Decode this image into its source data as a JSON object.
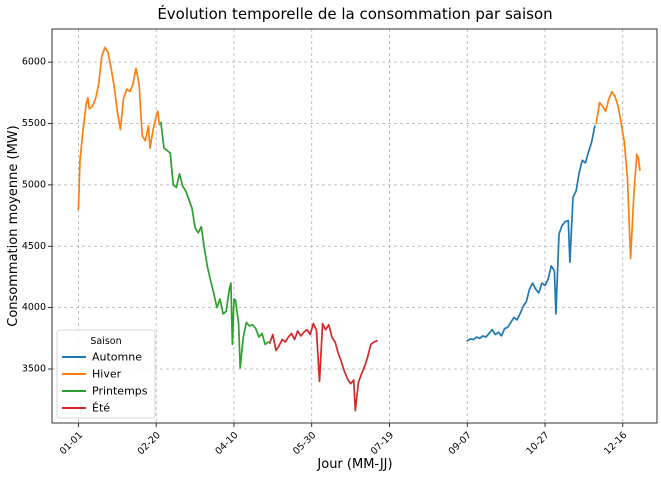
{
  "chart_data": {
    "type": "line",
    "title": "Évolution temporelle de la consommation par saison",
    "xlabel": "Jour (MM-JJ)",
    "ylabel": "Consommation moyenne (MW)",
    "x_tick_labels": [
      "01-01",
      "02-20",
      "04-10",
      "05-30",
      "07-19",
      "09-07",
      "10-27",
      "12-16"
    ],
    "x_tick_days": [
      1,
      51,
      101,
      151,
      201,
      251,
      301,
      351
    ],
    "x_range_days": [
      -16,
      373
    ],
    "y_ticks": [
      3500,
      4000,
      4500,
      5000,
      5500,
      6000
    ],
    "ylim": [
      3060,
      6270
    ],
    "grid": true,
    "legend": {
      "title": "Saison",
      "placement": "lower-left"
    },
    "series": [
      {
        "name": "Automne",
        "color": "#1f77b4",
        "points": [
          [
            251,
            3730
          ],
          [
            253,
            3745
          ],
          [
            255,
            3740
          ],
          [
            257,
            3760
          ],
          [
            259,
            3750
          ],
          [
            261,
            3770
          ],
          [
            263,
            3760
          ],
          [
            265,
            3790
          ],
          [
            267,
            3820
          ],
          [
            269,
            3780
          ],
          [
            271,
            3800
          ],
          [
            273,
            3770
          ],
          [
            275,
            3830
          ],
          [
            277,
            3840
          ],
          [
            279,
            3880
          ],
          [
            281,
            3920
          ],
          [
            283,
            3900
          ],
          [
            285,
            3950
          ],
          [
            287,
            4010
          ],
          [
            289,
            4050
          ],
          [
            291,
            4150
          ],
          [
            293,
            4200
          ],
          [
            295,
            4150
          ],
          [
            297,
            4120
          ],
          [
            299,
            4200
          ],
          [
            301,
            4180
          ],
          [
            303,
            4230
          ],
          [
            305,
            4340
          ],
          [
            307,
            4300
          ],
          [
            308,
            3950
          ],
          [
            310,
            4600
          ],
          [
            312,
            4670
          ],
          [
            314,
            4700
          ],
          [
            316,
            4710
          ],
          [
            317,
            4370
          ],
          [
            319,
            4900
          ],
          [
            321,
            4950
          ],
          [
            323,
            5100
          ],
          [
            325,
            5200
          ],
          [
            327,
            5180
          ],
          [
            329,
            5270
          ],
          [
            331,
            5350
          ],
          [
            333,
            5480
          ]
        ]
      },
      {
        "name": "Hiver",
        "color": "#ff7f0e",
        "points": [
          [
            1,
            4800
          ],
          [
            2,
            5200
          ],
          [
            4,
            5450
          ],
          [
            6,
            5660
          ],
          [
            7,
            5710
          ],
          [
            8,
            5620
          ],
          [
            10,
            5640
          ],
          [
            12,
            5700
          ],
          [
            14,
            5820
          ],
          [
            16,
            6050
          ],
          [
            18,
            6120
          ],
          [
            20,
            6080
          ],
          [
            22,
            5950
          ],
          [
            24,
            5800
          ],
          [
            26,
            5600
          ],
          [
            28,
            5450
          ],
          [
            30,
            5700
          ],
          [
            32,
            5780
          ],
          [
            34,
            5760
          ],
          [
            36,
            5820
          ],
          [
            38,
            5950
          ],
          [
            40,
            5820
          ],
          [
            42,
            5400
          ],
          [
            44,
            5360
          ],
          [
            46,
            5480
          ],
          [
            47,
            5300
          ],
          [
            49,
            5450
          ],
          [
            51,
            5560
          ],
          [
            52,
            5600
          ],
          [
            53,
            5490
          ],
          [
            334,
            5500
          ],
          [
            336,
            5670
          ],
          [
            338,
            5640
          ],
          [
            340,
            5600
          ],
          [
            342,
            5700
          ],
          [
            344,
            5760
          ],
          [
            346,
            5720
          ],
          [
            348,
            5640
          ],
          [
            350,
            5500
          ],
          [
            352,
            5350
          ],
          [
            354,
            5060
          ],
          [
            356,
            4400
          ],
          [
            358,
            4900
          ],
          [
            360,
            5250
          ],
          [
            361,
            5220
          ],
          [
            362,
            5120
          ]
        ]
      },
      {
        "name": "Printemps",
        "color": "#2ca02c",
        "points": [
          [
            54,
            5510
          ],
          [
            56,
            5300
          ],
          [
            58,
            5280
          ],
          [
            60,
            5260
          ],
          [
            62,
            5000
          ],
          [
            64,
            4980
          ],
          [
            66,
            5090
          ],
          [
            68,
            4990
          ],
          [
            70,
            4950
          ],
          [
            72,
            4880
          ],
          [
            74,
            4810
          ],
          [
            76,
            4650
          ],
          [
            78,
            4610
          ],
          [
            80,
            4660
          ],
          [
            82,
            4480
          ],
          [
            84,
            4330
          ],
          [
            86,
            4220
          ],
          [
            88,
            4120
          ],
          [
            90,
            4000
          ],
          [
            92,
            4070
          ],
          [
            94,
            3950
          ],
          [
            96,
            3970
          ],
          [
            98,
            4150
          ],
          [
            99,
            4200
          ],
          [
            100,
            3700
          ],
          [
            101,
            4070
          ],
          [
            102,
            4060
          ],
          [
            104,
            3870
          ],
          [
            105,
            3510
          ],
          [
            107,
            3760
          ],
          [
            109,
            3880
          ],
          [
            111,
            3850
          ],
          [
            113,
            3860
          ],
          [
            115,
            3830
          ],
          [
            117,
            3760
          ],
          [
            119,
            3790
          ],
          [
            121,
            3700
          ],
          [
            123,
            3720
          ]
        ]
      },
      {
        "name": "Été",
        "color": "#d62728",
        "points": [
          [
            124,
            3710
          ],
          [
            126,
            3780
          ],
          [
            128,
            3650
          ],
          [
            130,
            3690
          ],
          [
            132,
            3740
          ],
          [
            134,
            3720
          ],
          [
            136,
            3760
          ],
          [
            138,
            3790
          ],
          [
            140,
            3740
          ],
          [
            142,
            3810
          ],
          [
            144,
            3770
          ],
          [
            146,
            3800
          ],
          [
            148,
            3820
          ],
          [
            150,
            3780
          ],
          [
            152,
            3870
          ],
          [
            154,
            3820
          ],
          [
            156,
            3400
          ],
          [
            158,
            3870
          ],
          [
            160,
            3820
          ],
          [
            162,
            3860
          ],
          [
            164,
            3760
          ],
          [
            166,
            3720
          ],
          [
            168,
            3630
          ],
          [
            170,
            3560
          ],
          [
            172,
            3480
          ],
          [
            174,
            3420
          ],
          [
            176,
            3380
          ],
          [
            178,
            3410
          ],
          [
            179,
            3160
          ],
          [
            181,
            3390
          ],
          [
            183,
            3460
          ],
          [
            185,
            3520
          ],
          [
            187,
            3600
          ],
          [
            189,
            3700
          ],
          [
            191,
            3720
          ],
          [
            193,
            3730
          ]
        ]
      }
    ]
  }
}
